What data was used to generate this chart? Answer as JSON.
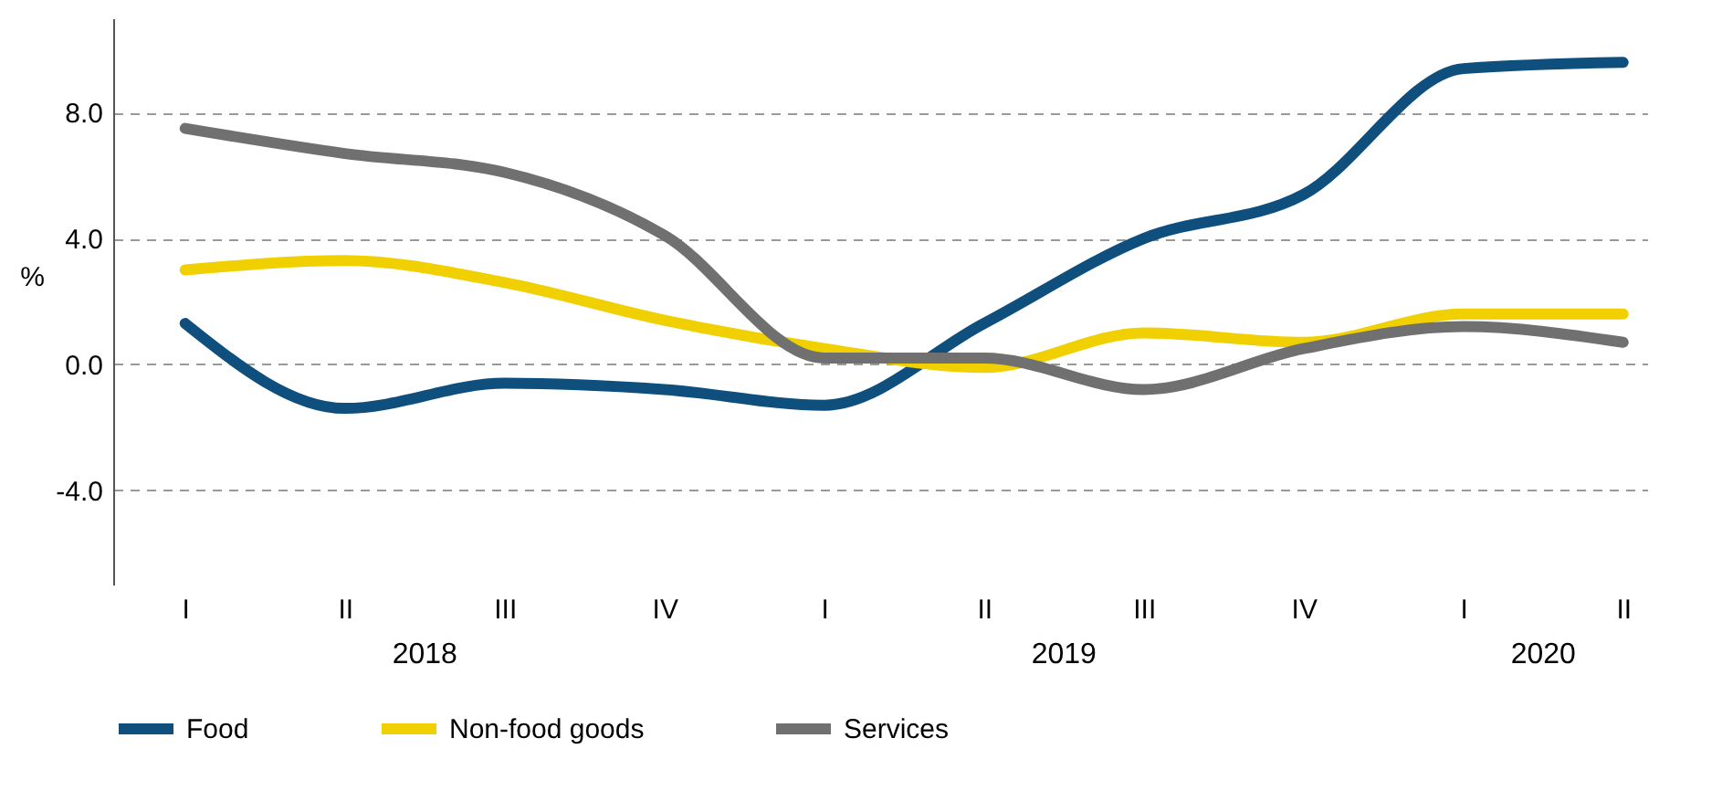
{
  "chart_data": {
    "type": "line",
    "ylabel": "%",
    "categories": [
      "I",
      "II",
      "III",
      "IV",
      "I",
      "II",
      "III",
      "IV",
      "I",
      "II"
    ],
    "series": [
      {
        "name": "Food",
        "color": "#0e4f7e",
        "values": [
          1.3,
          -1.4,
          -0.6,
          -0.8,
          -1.3,
          1.3,
          4.0,
          5.4,
          9.4,
          9.6
        ]
      },
      {
        "name": "Non-food goods",
        "color": "#f0d000",
        "values": [
          3.0,
          3.3,
          2.6,
          1.4,
          0.5,
          -0.1,
          1.0,
          0.7,
          1.6,
          1.6
        ]
      },
      {
        "name": "Services",
        "color": "#707070",
        "values": [
          7.5,
          6.7,
          6.1,
          4.1,
          0.2,
          0.2,
          -0.8,
          0.5,
          1.2,
          0.7
        ]
      }
    ],
    "annotations": [
      "2018",
      "2019",
      "2020"
    ],
    "ylim": [
      -7,
      11
    ],
    "yticks": [
      {
        "value": -4,
        "label": "-4.0"
      },
      {
        "value": 0,
        "label": "0.0"
      },
      {
        "value": 4,
        "label": "4.0"
      },
      {
        "value": 8,
        "label": "8.0"
      }
    ],
    "grid": "y",
    "legend": "bottom",
    "marker": "none",
    "line_style": "solid"
  }
}
